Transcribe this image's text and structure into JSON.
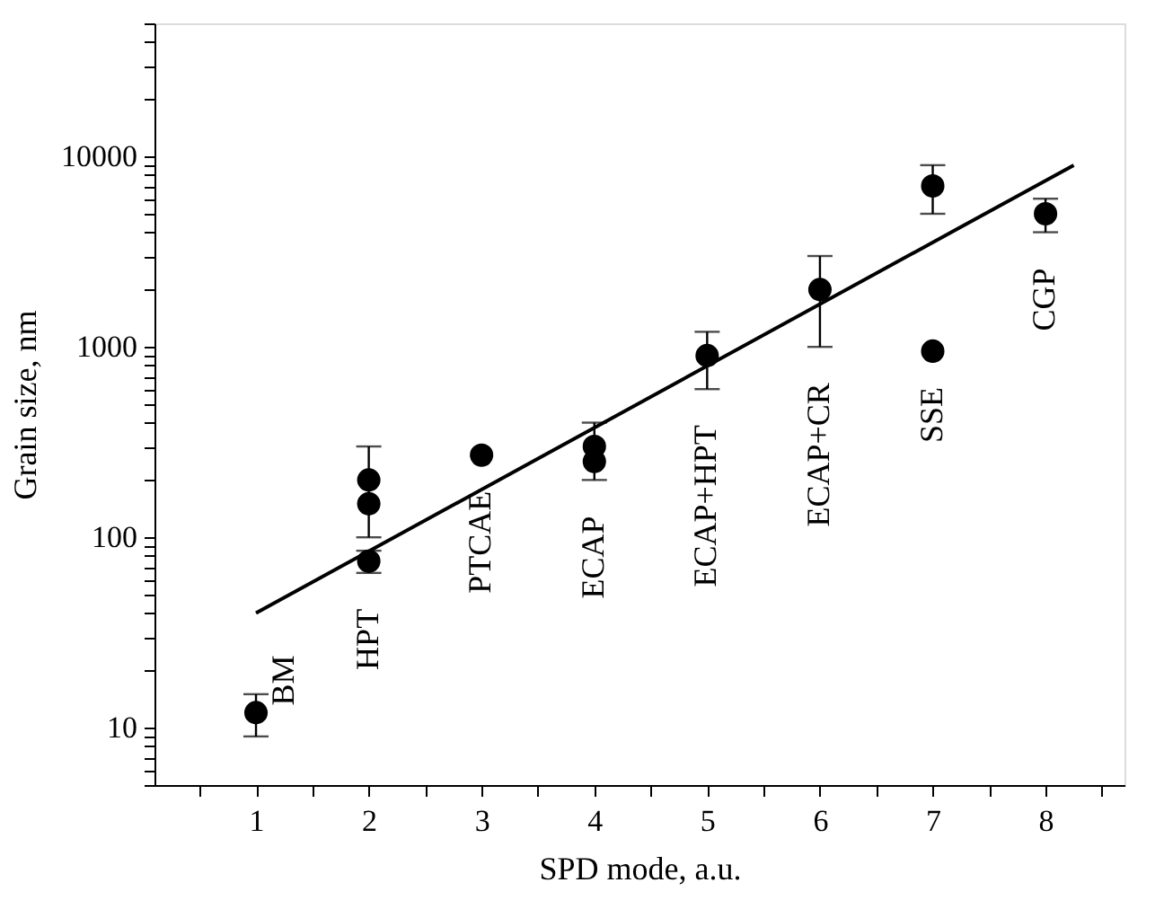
{
  "chart_data": {
    "type": "scatter",
    "xlabel": "SPD mode, a.u.",
    "ylabel": "Grain size, nm",
    "log": "y",
    "grid": false,
    "marker": "circle",
    "xlim": [
      0.1,
      8.7
    ],
    "xticks": [
      {
        "value": 0.5,
        "label": null
      },
      1,
      {
        "value": 1.5,
        "label": null
      },
      2,
      {
        "value": 2.5,
        "label": null
      },
      3,
      {
        "value": 3.5,
        "label": null
      },
      4,
      {
        "value": 4.5,
        "label": null
      },
      5,
      {
        "value": 5.5,
        "label": null
      },
      6,
      {
        "value": 6.5,
        "label": null
      },
      7,
      {
        "value": 7.5,
        "label": null
      },
      8,
      {
        "value": 8.5,
        "label": null
      }
    ],
    "ylim": [
      5,
      50000
    ],
    "yticks": [
      {
        "value": 5,
        "label": null
      },
      {
        "value": 6,
        "label": null
      },
      {
        "value": 7,
        "label": null
      },
      {
        "value": 8,
        "label": null
      },
      {
        "value": 9,
        "label": null
      },
      10,
      {
        "value": 20,
        "label": null
      },
      {
        "value": 30,
        "label": null
      },
      {
        "value": 40,
        "label": null
      },
      {
        "value": 50,
        "label": null
      },
      {
        "value": 60,
        "label": null
      },
      {
        "value": 70,
        "label": null
      },
      {
        "value": 80,
        "label": null
      },
      {
        "value": 90,
        "label": null
      },
      100,
      {
        "value": 200,
        "label": null
      },
      {
        "value": 300,
        "label": null
      },
      {
        "value": 400,
        "label": null
      },
      {
        "value": 500,
        "label": null
      },
      {
        "value": 600,
        "label": null
      },
      {
        "value": 700,
        "label": null
      },
      {
        "value": 800,
        "label": null
      },
      {
        "value": 900,
        "label": null
      },
      1000,
      {
        "value": 2000,
        "label": null
      },
      {
        "value": 3000,
        "label": null
      },
      {
        "value": 4000,
        "label": null
      },
      {
        "value": 5000,
        "label": null
      },
      {
        "value": 6000,
        "label": null
      },
      {
        "value": 7000,
        "label": null
      },
      {
        "value": 8000,
        "label": null
      },
      {
        "value": 9000,
        "label": null
      },
      10000,
      {
        "value": 20000,
        "label": null
      },
      {
        "value": 30000,
        "label": null
      },
      {
        "value": 40000,
        "label": null
      },
      {
        "value": 50000,
        "label": null
      }
    ],
    "series": [
      {
        "type": "scatter",
        "color": "#000000",
        "x": [
          1,
          2,
          2,
          2,
          3,
          4,
          4,
          5,
          6,
          7,
          7,
          8
        ],
        "values": [
          12,
          200,
          150,
          75,
          270,
          300,
          250,
          900,
          2000,
          7000,
          950,
          5000
        ],
        "errors": [
          [
            9,
            15
          ],
          null,
          [
            100,
            300
          ],
          [
            65,
            85
          ],
          null,
          [
            200,
            400
          ],
          null,
          [
            600,
            1200
          ],
          [
            1000,
            3000
          ],
          [
            5000,
            9000
          ],
          null,
          [
            4000,
            6000
          ]
        ]
      },
      {
        "type": "line",
        "color": "#000000",
        "line_style": "solid",
        "marker": "none",
        "x": [
          1,
          8.25
        ],
        "values": [
          40,
          9000
        ]
      }
    ],
    "annotations": [
      "BM",
      "HPT",
      "PTCAE",
      "ECAP",
      "ECAP+HPT",
      "ECAP+CR",
      "SSE",
      "CGP"
    ]
  }
}
